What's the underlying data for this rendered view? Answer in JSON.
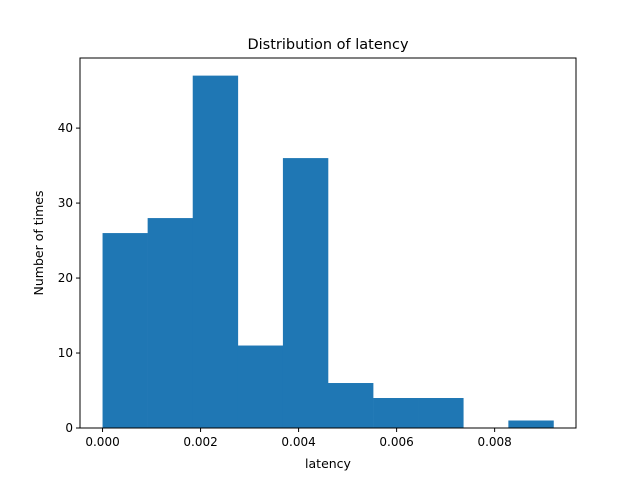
{
  "chart_data": {
    "type": "bar",
    "title": "Distribution of latency",
    "xlabel": "latency",
    "ylabel": "Number of times",
    "bins": [
      {
        "start": 0.0,
        "end": 0.00092,
        "count": 26
      },
      {
        "start": 0.00092,
        "end": 0.00184,
        "count": 28
      },
      {
        "start": 0.00184,
        "end": 0.00276,
        "count": 47
      },
      {
        "start": 0.00276,
        "end": 0.00368,
        "count": 11
      },
      {
        "start": 0.00368,
        "end": 0.0046,
        "count": 36
      },
      {
        "start": 0.0046,
        "end": 0.00552,
        "count": 6
      },
      {
        "start": 0.00552,
        "end": 0.00644,
        "count": 4
      },
      {
        "start": 0.00644,
        "end": 0.00736,
        "count": 4
      },
      {
        "start": 0.00736,
        "end": 0.00828,
        "count": 0
      },
      {
        "start": 0.00828,
        "end": 0.0092,
        "count": 1
      }
    ],
    "xlim": [
      -0.00046,
      0.00966
    ],
    "ylim": [
      0,
      49.35
    ],
    "xticks": [
      0.0,
      0.002,
      0.004,
      0.006,
      0.008
    ],
    "xtick_labels": [
      "0.000",
      "0.002",
      "0.004",
      "0.006",
      "0.008"
    ],
    "yticks": [
      0,
      10,
      20,
      30,
      40
    ],
    "ytick_labels": [
      "0",
      "10",
      "20",
      "30",
      "40"
    ],
    "bar_color": "#1f77b4",
    "grid": false,
    "legend": "none"
  }
}
